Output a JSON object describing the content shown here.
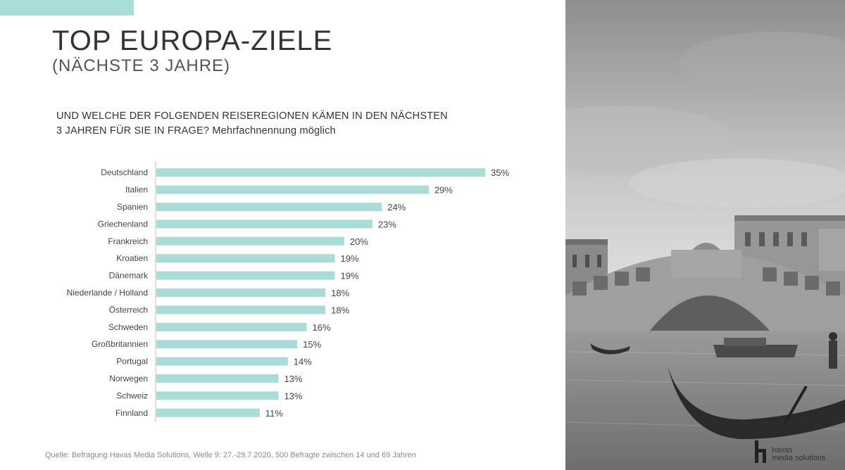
{
  "header": {
    "title": "TOP EUROPA-ZIELE",
    "subtitle": "(NÄCHSTE 3 JAHRE)",
    "question_line1": "UND WELCHE DER FOLGENDEN REISEREGIONEN KÄMEN IN DEN NÄCHSTEN",
    "question_line2": "3 JAHREN FÜR SIE IN FRAGE? Mehrfachnennung möglich"
  },
  "colors": {
    "bar": "#a8ddd7",
    "accent": "#a8ddd7",
    "axis": "#bfbfbf"
  },
  "chart_data": {
    "type": "bar",
    "orientation": "horizontal",
    "categories": [
      "Deutschland",
      "Italien",
      "Spanien",
      "Griechenland",
      "Frankreich",
      "Kroatien",
      "Dänemark",
      "Niederlande / Holland",
      "Österreich",
      "Schweden",
      "Großbritannien",
      "Portugal",
      "Norwegen",
      "Schweiz",
      "Finnland"
    ],
    "values": [
      35,
      29,
      24,
      23,
      20,
      19,
      19,
      18,
      18,
      16,
      15,
      14,
      13,
      13,
      11
    ],
    "value_labels": [
      "35%",
      "29%",
      "24%",
      "23%",
      "20%",
      "19%",
      "19%",
      "18%",
      "18%",
      "16%",
      "15%",
      "14%",
      "13%",
      "13%",
      "11%"
    ],
    "unit": "%",
    "xlim": [
      0,
      35
    ],
    "grid": false,
    "legend": "none"
  },
  "footer": {
    "source": "Quelle: Befragung Havas Media Solutions, Welle 9: 27.-29.7.2020, 500 Befragte zwischen 14 und 69 Jahren"
  },
  "logo": {
    "line1": "havas",
    "line2": "media solutions"
  },
  "photo": {
    "icon": "venice-rialto-bridge-photo"
  }
}
